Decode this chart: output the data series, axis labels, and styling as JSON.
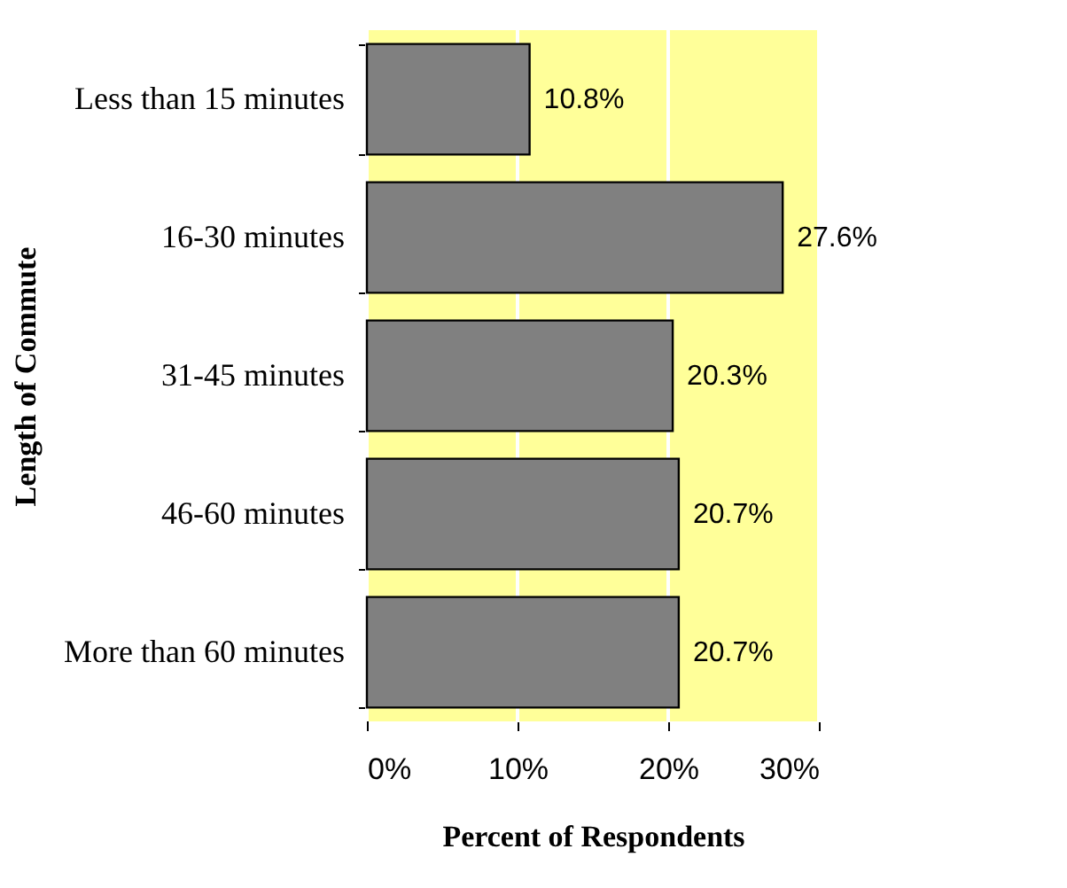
{
  "chart_data": {
    "type": "bar",
    "orientation": "horizontal",
    "xlabel": "Percent of Respondents",
    "ylabel": "Length of Commute",
    "categories": [
      "Less than 15 minutes",
      "16-30 minutes",
      "31-45 minutes",
      "46-60 minutes",
      "More than 60 minutes"
    ],
    "values": [
      10.8,
      27.6,
      20.3,
      20.7,
      20.7
    ],
    "value_labels": [
      "10.8%",
      "27.6%",
      "20.3%",
      "20.7%",
      "20.7%"
    ],
    "color": "#808080",
    "xlim": [
      0,
      30
    ],
    "xticks": [
      {
        "value": 0,
        "label": "0%"
      },
      {
        "value": 10,
        "label": "10%"
      },
      {
        "value": 20,
        "label": "20%"
      },
      {
        "value": 30,
        "label": "30%"
      }
    ],
    "grid": "x",
    "bands": [
      {
        "axis": "x",
        "from": 0,
        "to": 30,
        "color": "#ffff99"
      }
    ]
  }
}
